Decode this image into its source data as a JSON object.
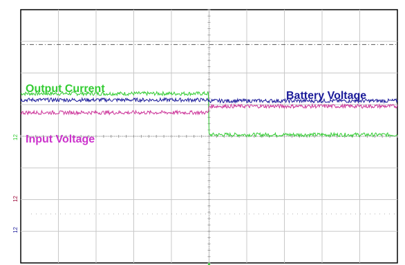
{
  "chart_data": {
    "type": "line",
    "title": "",
    "xlabel": "",
    "ylabel": "",
    "grid": true,
    "x_divisions": 10,
    "y_divisions": 8,
    "xlim": [
      0,
      10
    ],
    "ylim": [
      -4,
      4
    ],
    "reference_line": {
      "style": "dash-dot",
      "y": 2.9,
      "color": "#555555"
    },
    "step_at_x": 5.0,
    "series": [
      {
        "name": "Output Current",
        "color": "#33cc33",
        "before": 1.35,
        "after": 0.05,
        "noise": 0.06
      },
      {
        "name": "Battery Voltage",
        "color": "#1a1a99",
        "before": 1.15,
        "after": 1.12,
        "noise": 0.06
      },
      {
        "name": "Input Voltage",
        "color": "#cc3399",
        "before": 0.75,
        "after": 0.95,
        "noise": 0.06
      }
    ],
    "labels": {
      "output_current": "Output Current",
      "battery_voltage": "Battery Voltage",
      "input_voltage": "Input Voltage"
    },
    "channel_markers": [
      "12",
      "12",
      "12"
    ]
  }
}
